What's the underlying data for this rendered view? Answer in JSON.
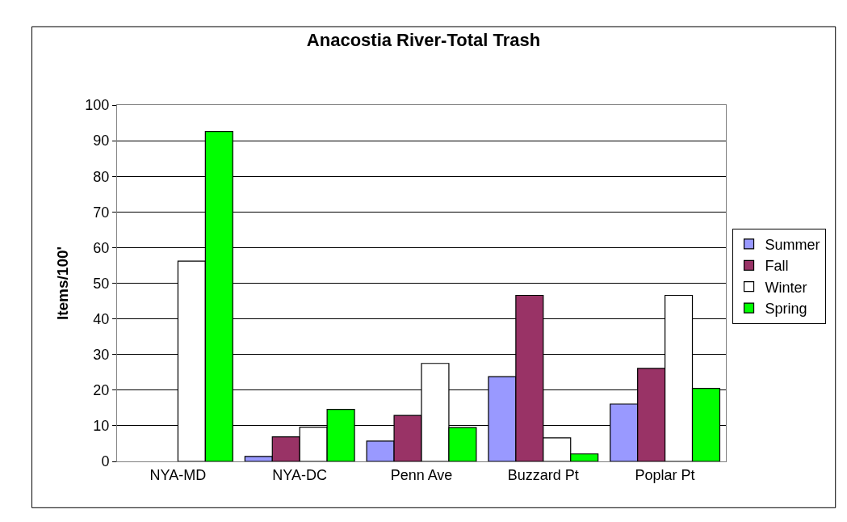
{
  "chart_data": {
    "type": "bar",
    "title": "Anacostia River-Total Trash",
    "ylabel": "Items/100'",
    "categories": [
      "NYA-MD",
      "NYA-DC",
      "Penn Ave",
      "Buzzard Pt",
      "Poplar Pt"
    ],
    "series": [
      {
        "name": "Summer",
        "color": "#9999ff",
        "values": [
          null,
          1.4,
          5.7,
          23.8,
          16.1
        ]
      },
      {
        "name": "Fall",
        "color": "#993366",
        "values": [
          null,
          6.9,
          12.9,
          46.6,
          26.1
        ]
      },
      {
        "name": "Winter",
        "color": "#ffffff",
        "values": [
          56.2,
          9.6,
          27.5,
          6.6,
          46.6
        ]
      },
      {
        "name": "Spring",
        "color": "#00ff00",
        "values": [
          92.6,
          14.6,
          9.5,
          2.1,
          20.5
        ]
      }
    ],
    "ylim": [
      0,
      100
    ],
    "yticks": [
      0,
      10,
      20,
      30,
      40,
      50,
      60,
      70,
      80,
      90,
      100
    ],
    "grid": "y",
    "legend": "right"
  }
}
